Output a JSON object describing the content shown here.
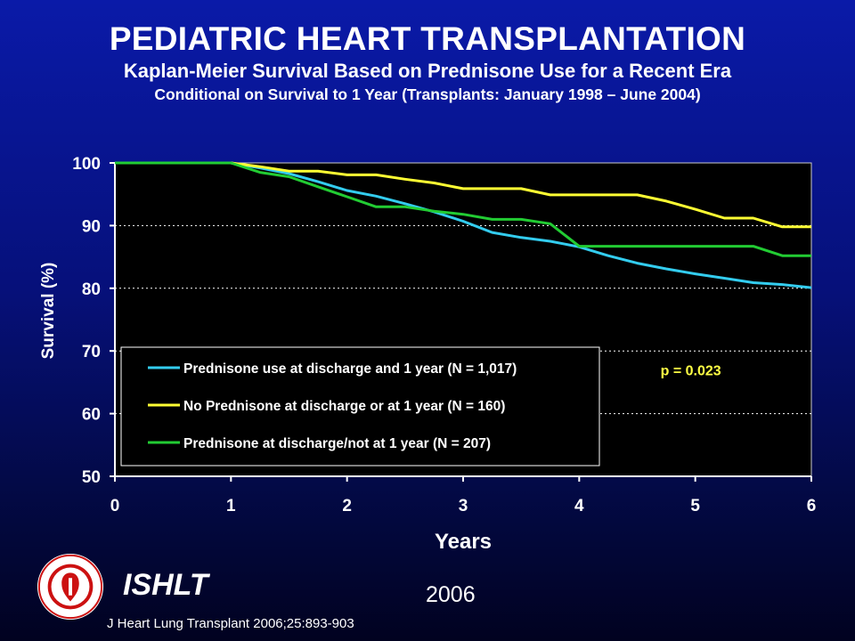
{
  "header": {
    "title": "PEDIATRIC HEART TRANSPLANTATION",
    "subtitle": "Kaplan-Meier Survival Based on Prednisone Use for a Recent Era",
    "subtitle2": "Conditional on Survival to 1 Year (Transplants: January 1998 – June 2004)"
  },
  "footer": {
    "organization": "ISHLT",
    "year": "2006",
    "citation": "J Heart Lung Transplant 2006;25:893-903",
    "logo_text": "INTERNATIONAL SOCIETY FOR HEART & LUNG TRANSPLANTATION"
  },
  "colors": {
    "background": "#06107a",
    "plot_background": "#000000",
    "axis_text": "#ffffff",
    "annotation": "#ffff44"
  },
  "chart_data": {
    "type": "line",
    "title": "",
    "xlabel": "Years",
    "ylabel": "Survival (%)",
    "xlim": [
      0,
      6
    ],
    "ylim": [
      50,
      100
    ],
    "xticks": [
      "0",
      "1",
      "2",
      "3",
      "4",
      "5",
      "6"
    ],
    "yticks": [
      "50",
      "60",
      "70",
      "80",
      "90",
      "100"
    ],
    "grid": "horizontal dashed",
    "legend_position": "lower-left",
    "annotations": [
      {
        "text": "p = 0.023",
        "x": 5.0,
        "y": 67
      }
    ],
    "series": [
      {
        "name": "Prednisone use at discharge and 1 year (N = 1,017)",
        "color": "#33ccee",
        "x": [
          0,
          1,
          1.25,
          1.5,
          1.75,
          2,
          2.25,
          2.5,
          2.75,
          3,
          3.25,
          3.5,
          3.75,
          4,
          4.25,
          4.5,
          4.75,
          5,
          5.25,
          5.5,
          5.75,
          6
        ],
        "y": [
          100,
          100,
          99.2,
          98.3,
          97.0,
          95.6,
          94.7,
          93.5,
          92.2,
          90.7,
          88.9,
          88.1,
          87.5,
          86.6,
          85.2,
          84.0,
          83.1,
          82.3,
          81.6,
          80.9,
          80.6,
          80.1
        ]
      },
      {
        "name": "No Prednisone at discharge or at 1 year (N = 160)",
        "color": "#ffff33",
        "x": [
          0,
          1,
          1.25,
          1.5,
          1.75,
          2,
          2.25,
          2.5,
          2.75,
          3,
          3.25,
          3.5,
          3.75,
          4,
          4.25,
          4.5,
          4.75,
          5,
          5.25,
          5.5,
          5.75,
          6
        ],
        "y": [
          100,
          100,
          99.4,
          98.7,
          98.7,
          98.1,
          98.1,
          97.4,
          96.8,
          95.9,
          95.9,
          95.9,
          94.9,
          94.9,
          94.9,
          94.9,
          93.9,
          92.6,
          91.2,
          91.2,
          89.8,
          89.8
        ]
      },
      {
        "name": "Prednisone at discharge/not at 1 year (N = 207)",
        "color": "#22cc33",
        "x": [
          0,
          1,
          1.25,
          1.5,
          1.75,
          2,
          2.25,
          2.5,
          2.75,
          3,
          3.25,
          3.5,
          3.75,
          4,
          4.25,
          4.5,
          4.75,
          5,
          5.25,
          5.5,
          5.75,
          6
        ],
        "y": [
          100,
          100,
          98.5,
          97.8,
          96.2,
          94.6,
          93.0,
          93.0,
          92.3,
          91.8,
          91.0,
          91.0,
          90.3,
          86.7,
          86.7,
          86.7,
          86.7,
          86.7,
          86.7,
          86.7,
          85.2,
          85.2
        ]
      }
    ]
  }
}
